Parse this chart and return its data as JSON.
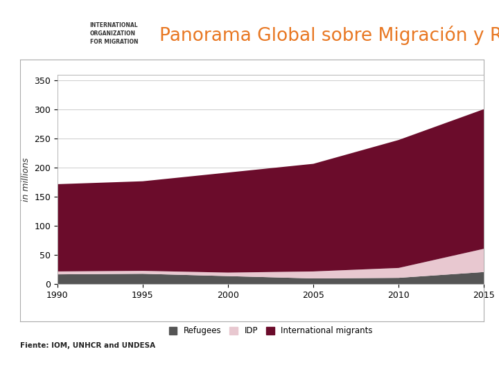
{
  "title": "Panorama Global sobre Migración y Retorno",
  "title_color": "#E87722",
  "source_text": "Fiente: IOM, UNHCR and UNDESA",
  "ylabel": "in millions",
  "years": [
    1990,
    1995,
    2000,
    2005,
    2010,
    2015
  ],
  "refugees": [
    17,
    18,
    14,
    10,
    11,
    21
  ],
  "idp": [
    5,
    5,
    6,
    12,
    17,
    40
  ],
  "international_migrants": [
    150,
    154,
    172,
    185,
    220,
    240
  ],
  "color_refugees": "#555555",
  "color_idp": "#e8c8d0",
  "color_intl": "#6b0c2b",
  "ylim": [
    0,
    360
  ],
  "yticks": [
    0,
    50,
    100,
    150,
    200,
    250,
    300,
    350
  ],
  "bg_color": "#ffffff",
  "fig_bg_color": "#ffffff",
  "header_line_color": "#1a6496",
  "bottom_line_color": "#1a6496",
  "logo_bg_color": "#3a5a8c",
  "iom_text": "INTERNATIONAL\nORGANIZATION\nFOR MIGRATION",
  "years_label": [
    "1990",
    "1995",
    "2000",
    "2005",
    "2010",
    "2015"
  ]
}
